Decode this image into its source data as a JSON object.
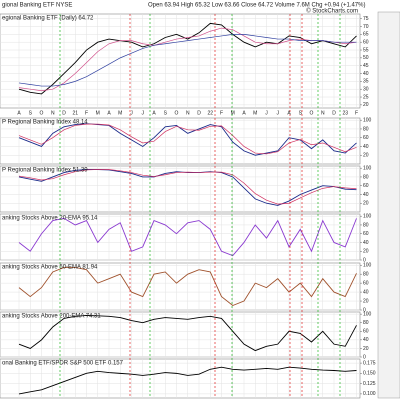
{
  "header": {
    "symbol": "gional Banking ETF NYSE",
    "quote": "Open 63.94 High 65.32 Low 63.66 Close 64.72 Volume 7.6M Chg +0.94 (+1.47%)",
    "credit": "© StockCharts.com"
  },
  "chart_data": [
    {
      "type": "line",
      "title": "egional Banking ETF (Daily) 64.72",
      "categories": [
        "A",
        "S",
        "O",
        "N",
        "D",
        "21",
        "F",
        "M",
        "A",
        "M",
        "J",
        "J",
        "A",
        "S",
        "O",
        "N",
        "D",
        "22",
        "F",
        "M",
        "A",
        "M",
        "J",
        "J",
        "A",
        "S",
        "O",
        "N",
        "D",
        "23",
        "F"
      ],
      "series": [
        {
          "color": "#000000",
          "values": [
            30,
            28,
            27,
            33,
            40,
            47,
            55,
            60,
            62,
            61,
            60,
            57,
            59,
            63,
            65,
            62,
            66,
            72,
            71,
            65,
            60,
            57,
            60,
            59,
            64,
            63,
            59,
            61,
            59,
            57,
            64
          ]
        },
        {
          "color": "#d0508a",
          "values": [
            31,
            30,
            29,
            30,
            34,
            40,
            47,
            54,
            59,
            61,
            61,
            59,
            58,
            60,
            62,
            63,
            64,
            67,
            69,
            68,
            64,
            60,
            59,
            59,
            61,
            62,
            61,
            61,
            60,
            59,
            60
          ]
        },
        {
          "color": "#3040a0",
          "values": [
            34,
            33,
            32,
            32,
            33,
            35,
            38,
            42,
            46,
            50,
            53,
            56,
            58,
            59,
            60,
            61,
            62,
            63,
            64,
            65,
            65,
            64,
            63,
            62,
            62,
            61,
            61,
            61,
            60,
            60,
            60
          ]
        }
      ],
      "ylim": [
        18,
        78
      ],
      "yticks": [
        75,
        70,
        65,
        60,
        55,
        50,
        45,
        40,
        35,
        30,
        25,
        20
      ],
      "grid": true
    },
    {
      "type": "line",
      "title": "P Regional Banking Index 48.14",
      "series": [
        {
          "color": "#1a2a8a",
          "values": [
            60,
            50,
            40,
            70,
            85,
            90,
            92,
            90,
            88,
            70,
            55,
            40,
            60,
            85,
            88,
            70,
            80,
            90,
            85,
            50,
            30,
            20,
            25,
            30,
            60,
            55,
            35,
            55,
            30,
            25,
            48
          ]
        },
        {
          "color": "#d03060",
          "values": [
            65,
            55,
            45,
            60,
            78,
            88,
            91,
            91,
            89,
            78,
            62,
            48,
            52,
            74,
            86,
            78,
            77,
            86,
            87,
            65,
            40,
            25,
            23,
            28,
            48,
            56,
            44,
            48,
            38,
            28,
            38
          ]
        }
      ],
      "ylim": [
        0,
        105
      ],
      "yticks": [
        100,
        80,
        60,
        40,
        20
      ],
      "grid": true
    },
    {
      "type": "line",
      "title": "P Regional Banking Index 51.39",
      "series": [
        {
          "color": "#1a2a8a",
          "values": [
            80,
            75,
            70,
            80,
            90,
            95,
            97,
            97,
            96,
            92,
            88,
            80,
            80,
            88,
            92,
            90,
            90,
            92,
            90,
            80,
            55,
            30,
            20,
            15,
            25,
            40,
            50,
            60,
            58,
            52,
            51
          ]
        },
        {
          "color": "#d03060",
          "values": [
            82,
            78,
            73,
            76,
            85,
            92,
            96,
            97,
            97,
            94,
            90,
            84,
            81,
            85,
            90,
            91,
            90,
            91,
            91,
            85,
            66,
            42,
            27,
            18,
            20,
            32,
            44,
            54,
            58,
            55,
            53
          ]
        }
      ],
      "ylim": [
        0,
        105
      ],
      "yticks": [
        100,
        80,
        60,
        40,
        20
      ],
      "grid": true
    },
    {
      "type": "line",
      "title": "anking Stocks Above 20-EMA 95.14",
      "series": [
        {
          "color": "#8a3ad0",
          "values": [
            40,
            20,
            60,
            90,
            95,
            80,
            90,
            40,
            70,
            85,
            20,
            30,
            90,
            80,
            60,
            85,
            90,
            70,
            20,
            10,
            40,
            80,
            50,
            90,
            30,
            70,
            20,
            90,
            40,
            30,
            95
          ]
        }
      ],
      "ylim": [
        0,
        105
      ],
      "yticks": [
        100,
        80,
        60,
        40,
        20,
        0
      ],
      "grid": true
    },
    {
      "type": "line",
      "title": "anking Stocks Above 50-EMA 81.94",
      "series": [
        {
          "color": "#a0522d",
          "values": [
            50,
            30,
            50,
            85,
            95,
            95,
            90,
            60,
            70,
            80,
            40,
            30,
            80,
            85,
            60,
            80,
            90,
            85,
            30,
            10,
            20,
            60,
            50,
            70,
            40,
            60,
            30,
            70,
            40,
            30,
            82
          ]
        }
      ],
      "ylim": [
        0,
        105
      ],
      "yticks": [
        100,
        80,
        60,
        40,
        20,
        0
      ],
      "grid": true
    },
    {
      "type": "line",
      "title": "anking Stocks Above 200-EMA 74.31",
      "series": [
        {
          "color": "#000000",
          "values": [
            30,
            20,
            40,
            70,
            90,
            95,
            97,
            96,
            95,
            92,
            85,
            80,
            88,
            92,
            90,
            88,
            92,
            95,
            90,
            60,
            30,
            15,
            25,
            30,
            60,
            55,
            35,
            60,
            30,
            25,
            74
          ]
        }
      ],
      "ylim": [
        0,
        105
      ],
      "yticks": [
        100,
        80,
        60,
        40,
        20,
        0
      ],
      "grid": true
    },
    {
      "type": "line",
      "title": "onal Banking ETF/SPDR S&P 500 ETF 0.157",
      "series": [
        {
          "color": "#000000",
          "values": [
            0.1,
            0.105,
            0.11,
            0.12,
            0.13,
            0.14,
            0.15,
            0.155,
            0.152,
            0.15,
            0.148,
            0.145,
            0.148,
            0.152,
            0.15,
            0.145,
            0.148,
            0.16,
            0.165,
            0.16,
            0.158,
            0.16,
            0.162,
            0.16,
            0.165,
            0.163,
            0.16,
            0.158,
            0.157,
            0.155,
            0.157
          ]
        }
      ],
      "ylim": [
        0.09,
        0.185
      ],
      "yticks": [
        0.175,
        {
          "value": 0.15,
          "label": "0.150"
        },
        0.125,
        {
          "value": 0.1,
          "label": "0.100"
        }
      ],
      "grid": true
    }
  ]
}
